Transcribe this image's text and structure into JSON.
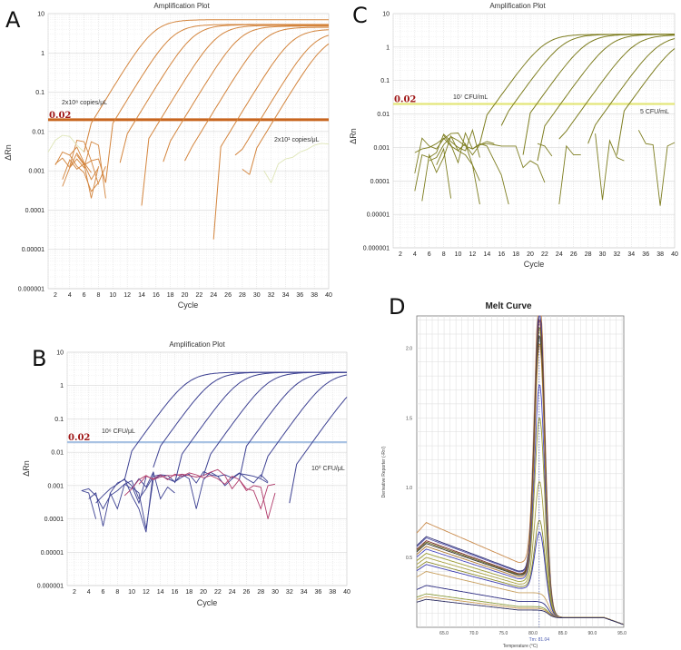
{
  "chart_data": [
    {
      "panel": "A",
      "type": "line",
      "title": "Amplification Plot",
      "xlabel": "Cycle",
      "ylabel": "ΔRn",
      "yscale": "log",
      "xlim": [
        1,
        40
      ],
      "ylim": [
        1e-06,
        10
      ],
      "xticks": [
        "2",
        "4",
        "6",
        "8",
        "10",
        "12",
        "14",
        "16",
        "18",
        "20",
        "22",
        "24",
        "26",
        "28",
        "30",
        "32",
        "34",
        "36",
        "38",
        "40"
      ],
      "yticks": [
        "10",
        "1",
        "0.1",
        "0.01",
        "0.001",
        "0.0001",
        "0.00001",
        "0.000001"
      ],
      "threshold": {
        "value": 0.02,
        "label": "0.02",
        "color": "#c8651e"
      },
      "annotations": [
        "2x10⁸ copies/μL",
        "2x10¹ copies/μL"
      ],
      "color": "#d3843c",
      "noise_color": "#dfe6b8",
      "series": [
        {
          "ct": 7.3,
          "plateau": 7.0,
          "start": 6,
          "start_value": 0.003
        },
        {
          "ct": 10.3,
          "plateau": 5.3,
          "start": 9,
          "start_value": 0.0005
        },
        {
          "ct": 13.2,
          "plateau": 5.2,
          "start": 11,
          "start_value": 0.0016
        },
        {
          "ct": 16.6,
          "plateau": 5.0,
          "start": 14,
          "start_value": 0.00013
        },
        {
          "ct": 19.8,
          "plateau": 4.8,
          "start": 17,
          "start_value": 0.0017
        },
        {
          "ct": 23.3,
          "plateau": 4.5,
          "start": 20,
          "start_value": 0.0018
        },
        {
          "ct": 27.3,
          "plateau": 4.0,
          "start": 24,
          "start_value": 1.8e-05
        },
        {
          "ct": 30.5,
          "plateau": 3.5,
          "start": 27,
          "start_value": 0.0025
        },
        {
          "ct": 32.4,
          "plateau": 3.0,
          "start": 29,
          "start_value": 0.0008
        }
      ],
      "noise": [
        {
          "start": 2,
          "values": [
            0.0014,
            0.003,
            0.0025,
            0.004,
            0.0016,
            0.0009
          ]
        },
        {
          "start": 2,
          "values": [
            0.0015,
            0.0021,
            0.0012,
            0.0028,
            0.0015,
            0.0006,
            0.0012
          ]
        },
        {
          "start": 3,
          "values": [
            0.0004,
            0.0012,
            0.002,
            0.0012,
            0.0055,
            0.0045,
            0.0002
          ]
        },
        {
          "start": 3,
          "values": [
            0.0006,
            0.0019,
            0.0011,
            0.0015,
            0.0002,
            0.0013
          ]
        },
        {
          "start": 4,
          "values": [
            0.0013,
            0.006,
            0.0055,
            0.0018,
            0.00045
          ]
        },
        {
          "start": 4,
          "values": [
            0.0025,
            0.0013,
            0.0009,
            0.0003,
            0.0005,
            0.0013
          ]
        },
        {
          "start": 5,
          "values": [
            0.0025,
            0.0014,
            0.0018,
            0.002,
            0.0005
          ]
        },
        {
          "start": 28,
          "values": [
            0.0011,
            0.0008
          ]
        },
        {
          "start": 1,
          "values": [
            0.003,
            0.006,
            0.008,
            0.0075,
            0.0045,
            0.003
          ],
          "faint": true
        },
        {
          "start": 31,
          "values": [
            0.001,
            0.0005,
            0.0015,
            0.002,
            0.0022,
            0.003,
            0.0035,
            0.0045,
            0.005,
            0.0048
          ],
          "faint": true
        }
      ]
    },
    {
      "panel": "B",
      "type": "line",
      "title": "Amplification Plot",
      "xlabel": "Cycle",
      "ylabel": "ΔRn",
      "yscale": "log",
      "xlim": [
        1,
        40
      ],
      "ylim": [
        1e-06,
        10
      ],
      "xticks": [
        "2",
        "4",
        "6",
        "8",
        "10",
        "12",
        "14",
        "16",
        "18",
        "20",
        "22",
        "24",
        "26",
        "28",
        "30",
        "32",
        "34",
        "36",
        "38",
        "40"
      ],
      "yticks": [
        "10",
        "1",
        "0.1",
        "0.01",
        "0.001",
        "0.0001",
        "0.00001",
        "0.000001"
      ],
      "threshold": {
        "value": 0.02,
        "label": "0.02",
        "color": "#a9c3e3"
      },
      "annotations": [
        "10⁶ CFU/μL",
        "10⁰ CFU/μL"
      ],
      "color": "#3d4192",
      "noise_color": "#b03a6a",
      "series": [
        {
          "ct": 10.9,
          "plateau": 2.5,
          "start": 9,
          "start_value": 0.0015
        },
        {
          "ct": 14.4,
          "plateau": 2.5,
          "start": 13,
          "start_value": 0.0035
        },
        {
          "ct": 18.2,
          "plateau": 2.5,
          "start": 16,
          "start_value": 0.0012
        },
        {
          "ct": 22.2,
          "plateau": 2.5,
          "start": 20,
          "start_value": 0.002
        },
        {
          "ct": 26.4,
          "plateau": 2.5,
          "start": 25,
          "start_value": 0.0015
        },
        {
          "ct": 30.4,
          "plateau": 2.4,
          "start": 28,
          "start_value": 0.0017
        },
        {
          "ct": 35.2,
          "plateau": 2.3,
          "start": 32,
          "start_value": 0.0003
        }
      ],
      "noise": [
        {
          "start": 3,
          "values": [
            0.0007,
            0.0008,
            0.0005,
            0.0002,
            0.0005,
            0.0007,
            0.0011,
            0.0008,
            0.0016,
            0.0009,
            0.0025
          ]
        },
        {
          "start": 3,
          "values": [
            0.0007,
            0.0006,
            0.0001
          ]
        },
        {
          "start": 4,
          "values": [
            0.0004,
            0.0006,
            6e-05,
            0.0006,
            0.0012,
            0.0015,
            0.001,
            0.0003,
            0.0018
          ]
        },
        {
          "start": 5,
          "values": [
            0.0003,
            0.0005,
            0.0008,
            0.0011,
            0.0016,
            0.0005,
            0.0002,
            4e-05,
            0.0026,
            0.0004,
            0.0009,
            0.0006
          ]
        },
        {
          "start": 7,
          "values": [
            0.0006,
            0.0002,
            0.0011,
            0.0014,
            0.0004,
            0.0008,
            0.0019,
            0.0021,
            0.002,
            0.0013,
            0.0022,
            0.0016,
            0.0002,
            0.0015,
            0.0025,
            0.0019,
            0.0021,
            0.0017,
            0.0024,
            0.0016,
            0.0012,
            0.0021,
            0.0013
          ]
        },
        {
          "start": 10,
          "values": [
            0.0009,
            0.0006,
            5e-05,
            0.0015,
            0.002,
            0.0016,
            0.0013,
            0.0018,
            0.0022,
            0.0012,
            0.0026,
            0.0021,
            0.0019,
            0.001,
            0.0016,
            0.0023,
            0.0021,
            0.0019,
            0.0016,
            0.0012
          ]
        },
        {
          "start": 9,
          "values": [
            0.0005,
            0.0008,
            0.0015,
            0.002,
            0.0015,
            0.0018,
            0.002,
            0.002,
            0.0022,
            0.002,
            0.0018,
            0.002,
            0.0025,
            0.003,
            0.002,
            0.0008,
            0.0015,
            0.0007,
            0.001,
            0.0009,
            0.0001,
            0.0006
          ],
          "faint": true
        },
        {
          "start": 11,
          "values": [
            0.0011,
            0.0019,
            0.0016,
            0.0021,
            0.0015,
            0.0022,
            0.0019,
            0.0024,
            0.0021,
            0.0017,
            0.002,
            0.0016,
            0.0011,
            0.0019,
            0.0015,
            0.0008,
            0.0007,
            0.0002,
            0.001,
            0.0011
          ],
          "faint": true
        }
      ]
    },
    {
      "panel": "C",
      "type": "line",
      "title": "Amplification Plot",
      "xlabel": "Cycle",
      "ylabel": "ΔRn",
      "yscale": "log",
      "xlim": [
        1,
        40
      ],
      "ylim": [
        1e-06,
        10
      ],
      "xticks": [
        "2",
        "4",
        "6",
        "8",
        "10",
        "12",
        "14",
        "16",
        "18",
        "20",
        "22",
        "24",
        "26",
        "28",
        "30",
        "32",
        "34",
        "36",
        "38",
        "40"
      ],
      "yticks": [
        "10",
        "1",
        "0.1",
        "0.01",
        "0.001",
        "0.0001",
        "0.00001",
        "0.000001"
      ],
      "threshold": {
        "value": 0.02,
        "label": "0.02",
        "color": "#e4e77a"
      },
      "annotations": [
        "10⁷ CFU/mL",
        "5 CFU/mL"
      ],
      "color": "#7d7d1f",
      "noise_color": "#7d7d1f",
      "series": [
        {
          "ct": 15.1,
          "plateau": 2.4,
          "start": 13,
          "start_value": 0.0013
        },
        {
          "ct": 17.7,
          "plateau": 2.4,
          "start": 16,
          "start_value": 0.0045
        },
        {
          "ct": 20.9,
          "plateau": 2.4,
          "start": 19,
          "start_value": 0.0006
        },
        {
          "ct": 24.2,
          "plateau": 2.4,
          "start": 21,
          "start_value": 0.0004
        },
        {
          "ct": 27.7,
          "plateau": 2.3,
          "start": 24,
          "start_value": 0.0018
        },
        {
          "ct": 31.1,
          "plateau": 2.2,
          "start": 28,
          "start_value": 0.0013
        },
        {
          "ct": 33.7,
          "plateau": 2.1,
          "start": 32,
          "start_value": 0.0006
        }
      ],
      "noise": [
        {
          "start": 4,
          "values": [
            0.00017,
            0.0019,
            0.0011,
            0.0009,
            0.0018,
            0.0026,
            0.0027,
            0.0012,
            0.0006,
            0.0012,
            0.0015,
            0.0013
          ]
        },
        {
          "start": 4,
          "values": [
            5e-05,
            0.0006,
            0.0005,
            0.0007,
            0.0025,
            0.0015,
            0.001,
            0.0008,
            0.0033,
            0.0005
          ]
        },
        {
          "start": 4,
          "values": [
            0.0007,
            0.0009,
            0.001,
            0.0013,
            0.0019,
            0.0011,
            0.0008,
            0.0006,
            0.0003,
            0.0001
          ]
        },
        {
          "start": 5,
          "values": [
            2.5e-05,
            0.0006,
            0.00018,
            0.0005,
            0.0022,
            0.0008,
            0.0013,
            0.0003,
            2e-05
          ]
        },
        {
          "start": 6,
          "values": [
            0.0004,
            0.0005,
            0.0012,
            0.0021,
            0.0016,
            0.0011,
            0.0009,
            0.0013,
            0.0011,
            0.0004,
            0.00015,
            2e-05
          ]
        },
        {
          "start": 7,
          "values": [
            0.0003,
            0.0009,
            3e-05
          ]
        },
        {
          "start": 8,
          "values": [
            0.0023,
            0.0012,
            0.00035,
            0.0027,
            0.0009,
            0.0012,
            0.0013,
            0.0012,
            0.0011,
            0.0011,
            0.0011,
            0.00025,
            0.0004,
            0.0003,
            9e-05
          ]
        },
        {
          "start": 21,
          "values": [
            0.0013,
            0.0011,
            0.00055
          ]
        },
        {
          "start": 24,
          "values": [
            2e-05,
            0.0011,
            0.0006,
            0.0006
          ]
        },
        {
          "start": 29,
          "values": [
            0.0026,
            2.7e-05,
            0.0016,
            0.0005,
            0.0004
          ]
        },
        {
          "start": 35,
          "values": [
            0.0033,
            0.0013,
            0.0012,
            1.8e-05,
            0.0011,
            0.0014
          ]
        }
      ]
    },
    {
      "panel": "D",
      "type": "line",
      "title": "Melt Curve",
      "xlabel": "Temperature (°C)",
      "ylabel": "Derivative Reporter (-Rn')",
      "xlim": [
        60.4,
        95.3
      ],
      "ylim": [
        0,
        2.23
      ],
      "xticks": [
        "65.0",
        "70.0",
        "75.0",
        "80.0",
        "85.0",
        "90.0",
        "95.0"
      ],
      "yticks": [
        "0.5",
        "1.0",
        "1.5",
        "2.0"
      ],
      "tm_label": "Tm: 81.04",
      "tm": 81.04,
      "series": [
        {
          "peak": 2.23,
          "baseline": 0.75,
          "color": "#c98a4a"
        },
        {
          "peak": 2.12,
          "baseline": 0.65,
          "color": "#2b2b70"
        },
        {
          "peak": 2.08,
          "baseline": 0.64,
          "color": "#5a5ab0"
        },
        {
          "peak": 2.03,
          "baseline": 0.62,
          "color": "#7a2a2a"
        },
        {
          "peak": 1.98,
          "baseline": 0.61,
          "color": "#6a6a1a"
        },
        {
          "peak": 1.92,
          "baseline": 0.6,
          "color": "#333333"
        },
        {
          "peak": 1.87,
          "baseline": 0.58,
          "color": "#b07a30"
        },
        {
          "peak": 1.58,
          "baseline": 0.56,
          "color": "#4a4ac0"
        },
        {
          "peak": 1.35,
          "baseline": 0.53,
          "color": "#9a9a30"
        },
        {
          "peak": 0.9,
          "baseline": 0.5,
          "color": "#a8a040"
        },
        {
          "peak": 0.63,
          "baseline": 0.47,
          "color": "#8a8a2a"
        },
        {
          "peak": 0.55,
          "baseline": 0.45,
          "color": "#3a3ab0"
        },
        {
          "peak": 0.0,
          "baseline": 0.4,
          "color": "#c8a060"
        },
        {
          "peak": 0.0,
          "baseline": 0.3,
          "color": "#2b2b80"
        },
        {
          "peak": 0.0,
          "baseline": 0.24,
          "color": "#8a9a3a"
        },
        {
          "peak": 0.0,
          "baseline": 0.22,
          "color": "#c89a50"
        },
        {
          "peak": 0.0,
          "baseline": 0.2,
          "color": "#2b2b60"
        }
      ]
    }
  ]
}
